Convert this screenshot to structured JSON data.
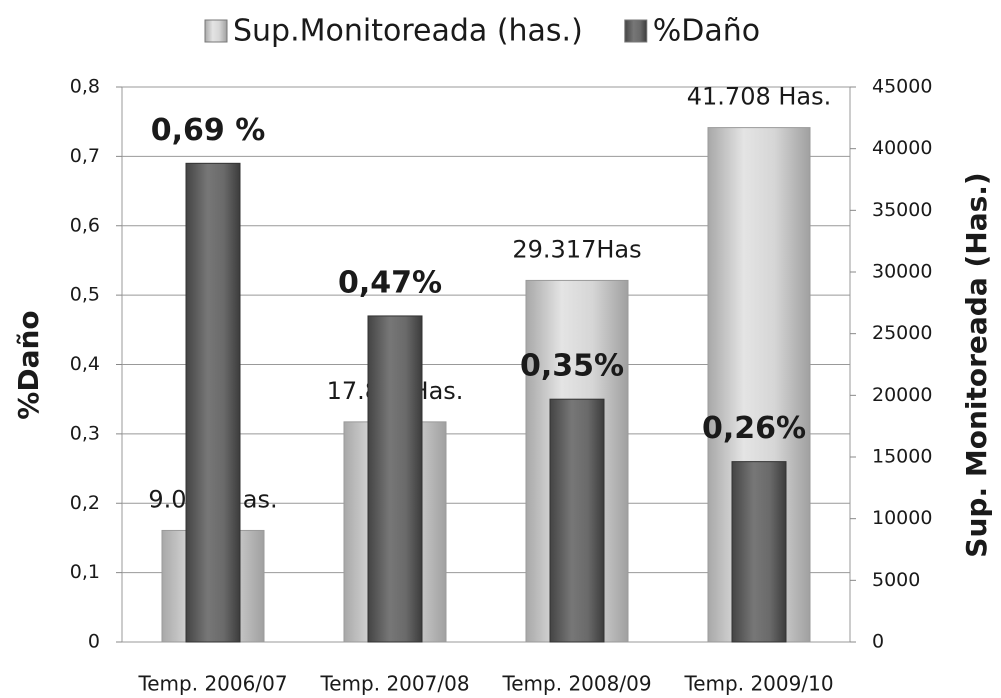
{
  "chart_data": {
    "type": "bar",
    "categories": [
      "Temp. 2006/07",
      "Temp. 2007/08",
      "Temp. 2008/09",
      "Temp. 2009/10"
    ],
    "series": [
      {
        "name": "Sup.Monitoreada (has.)",
        "color": "#c9c9c9",
        "axis": "y2",
        "values": [
          9044,
          17849,
          29317,
          41708
        ],
        "value_labels": [
          "9.044 Has.",
          "17.849Has.",
          "29.317Has",
          "41.708 Has."
        ]
      },
      {
        "name": "%Daño",
        "color": "#666666",
        "axis": "y",
        "values": [
          0.69,
          0.47,
          0.35,
          0.26
        ],
        "value_labels": [
          "0,69 %",
          "0,47%",
          "0,35%",
          "0,26%"
        ]
      }
    ],
    "y_label": "%Daño",
    "y2_label": "Sup. Monitoreada (Has.)",
    "ylim": [
      0,
      0.8
    ],
    "yticks": [
      {
        "value": 0,
        "label": "0"
      },
      {
        "value": 0.1,
        "label": "0,1"
      },
      {
        "value": 0.2,
        "label": "0,2"
      },
      {
        "value": 0.3,
        "label": "0,3"
      },
      {
        "value": 0.4,
        "label": "0,4"
      },
      {
        "value": 0.5,
        "label": "0,5"
      },
      {
        "value": 0.6,
        "label": "0,6"
      },
      {
        "value": 0.7,
        "label": "0,7"
      },
      {
        "value": 0.8,
        "label": "0,8"
      }
    ],
    "y2lim": [
      0,
      45000
    ],
    "y2ticks": [
      0,
      5000,
      10000,
      15000,
      20000,
      25000,
      30000,
      35000,
      40000,
      45000
    ],
    "grid": true,
    "legend": "top"
  }
}
